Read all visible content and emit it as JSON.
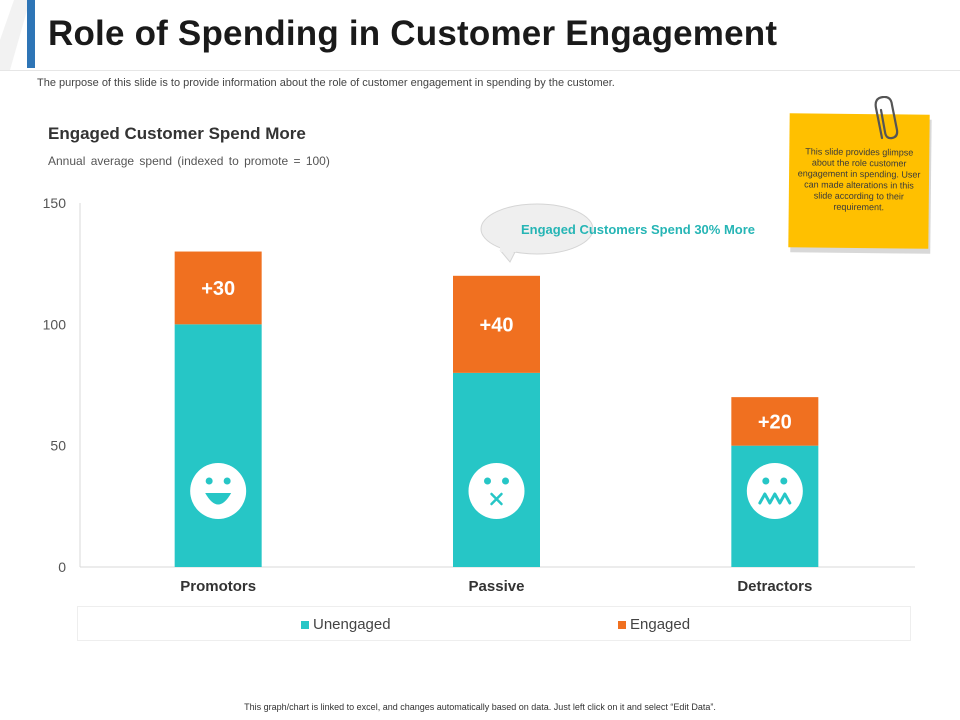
{
  "header": {
    "title": "Role of Spending in Customer Engagement",
    "subtitle": "The purpose of this slide is to provide information about the role of customer engagement in spending by the customer.",
    "accent_color": "#2e75b6"
  },
  "chart_data": {
    "type": "bar",
    "stacked": true,
    "title": "Engaged Customer Spend More",
    "subtitle": "Annual average  spend (indexed to promote = 100)",
    "categories": [
      "Promotors",
      "Passive",
      "Detractors"
    ],
    "series": [
      {
        "name": "Unengaged",
        "values": [
          100,
          80,
          50
        ],
        "color": "#26c6c6"
      },
      {
        "name": "Engaged",
        "values": [
          30,
          40,
          20
        ],
        "color": "#f07020"
      }
    ],
    "data_labels": [
      "+30",
      "+40",
      "+20"
    ],
    "ylim": [
      0,
      150
    ],
    "yticks": [
      0,
      50,
      100,
      150
    ],
    "xlabel": "",
    "ylabel": "",
    "legend": "bottom",
    "faces": [
      "smile-icon",
      "surprised-icon",
      "upset-icon"
    ],
    "callout": "Engaged Customers Spend 30% More"
  },
  "note": {
    "text": "This slide provides glimpse about the role customer engagement in spending. User can made alterations in this slide according to their requirement.",
    "color": "#ffc000"
  },
  "footer": {
    "text": "This graph/chart is linked to excel, and changes automatically based on data. Just left click on it and select “Edit Data”."
  }
}
